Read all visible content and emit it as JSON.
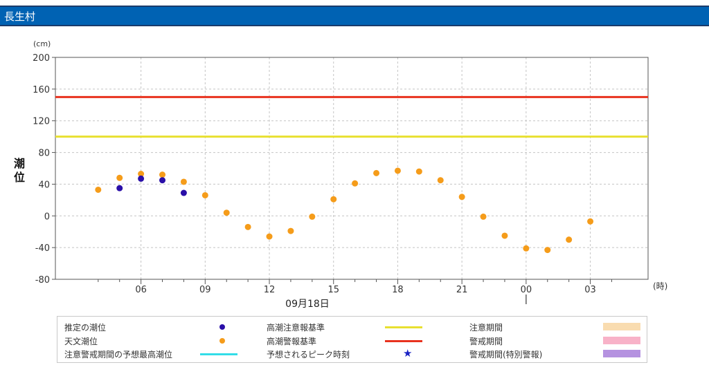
{
  "station": {
    "name": "長生村"
  },
  "chart_data": {
    "type": "scatter",
    "y_unit": "(cm)",
    "y_axis_label": [
      "潮",
      "位"
    ],
    "x_unit": "(時)",
    "date_label": "09月18日",
    "ylim": [
      -80,
      200
    ],
    "y_ticks": [
      -80,
      -40,
      0,
      40,
      80,
      120,
      160,
      200
    ],
    "x_range_hours": [
      2,
      29.7
    ],
    "x_ticks": [
      {
        "h": 6,
        "label": "06"
      },
      {
        "h": 9,
        "label": "09"
      },
      {
        "h": 12,
        "label": "12"
      },
      {
        "h": 15,
        "label": "15"
      },
      {
        "h": 18,
        "label": "18"
      },
      {
        "h": 21,
        "label": "21"
      },
      {
        "h": 24,
        "label": "00"
      },
      {
        "h": 27,
        "label": "03"
      }
    ],
    "x_minor_ticks_hours": [
      4,
      5,
      7,
      8,
      10,
      11,
      13,
      14,
      16,
      17,
      19,
      20,
      22,
      23,
      25,
      26,
      28
    ],
    "day_boundary_hour": 24,
    "grid": true,
    "thresholds": [
      {
        "name": "高潮注意報基準",
        "value": 100,
        "color": "#e8e030"
      },
      {
        "name": "高潮警報基準",
        "value": 150,
        "color": "#e8321e"
      }
    ],
    "series": [
      {
        "name": "推定の潮位",
        "color": "#2a0fa8",
        "points": [
          [
            5,
            35
          ],
          [
            6,
            47
          ],
          [
            7,
            45
          ],
          [
            8,
            29
          ]
        ]
      },
      {
        "name": "天文潮位",
        "color": "#f59c1a",
        "points": [
          [
            4,
            33
          ],
          [
            5,
            48
          ],
          [
            6,
            53
          ],
          [
            7,
            52
          ],
          [
            8,
            43
          ],
          [
            9,
            26
          ],
          [
            10,
            4
          ],
          [
            11,
            -14
          ],
          [
            12,
            -26
          ],
          [
            13,
            -19
          ],
          [
            14,
            -1
          ],
          [
            15,
            21
          ],
          [
            16,
            41
          ],
          [
            17,
            54
          ],
          [
            18,
            57
          ],
          [
            19,
            56
          ],
          [
            20,
            45
          ],
          [
            21,
            24
          ],
          [
            22,
            -1
          ],
          [
            23,
            -25
          ],
          [
            24,
            -41
          ],
          [
            25,
            -43
          ],
          [
            26,
            -30
          ],
          [
            27,
            -7
          ]
        ]
      }
    ]
  },
  "legend": {
    "rows": [
      [
        {
          "label": "推定の潮位",
          "marker": "dot",
          "color": "#2a0fa8"
        },
        {
          "label": "高潮注意報基準",
          "marker": "line",
          "color": "#e8e030"
        },
        {
          "label": "注意期間",
          "marker": "swatch",
          "color": "#f9dcb0"
        }
      ],
      [
        {
          "label": "天文潮位",
          "marker": "dot",
          "color": "#f59c1a"
        },
        {
          "label": "高潮警報基準",
          "marker": "line",
          "color": "#e8321e"
        },
        {
          "label": "警戒期間",
          "marker": "swatch",
          "color": "#f8b2c8"
        }
      ],
      [
        {
          "label": "注意警戒期間の予想最高潮位",
          "marker": "line",
          "color": "#33dde8"
        },
        {
          "label": "予想されるピーク時刻",
          "marker": "star",
          "color": "#1a22c4"
        },
        {
          "label": "警戒期間(特別警報)",
          "marker": "swatch",
          "color": "#b592e0"
        }
      ]
    ]
  }
}
